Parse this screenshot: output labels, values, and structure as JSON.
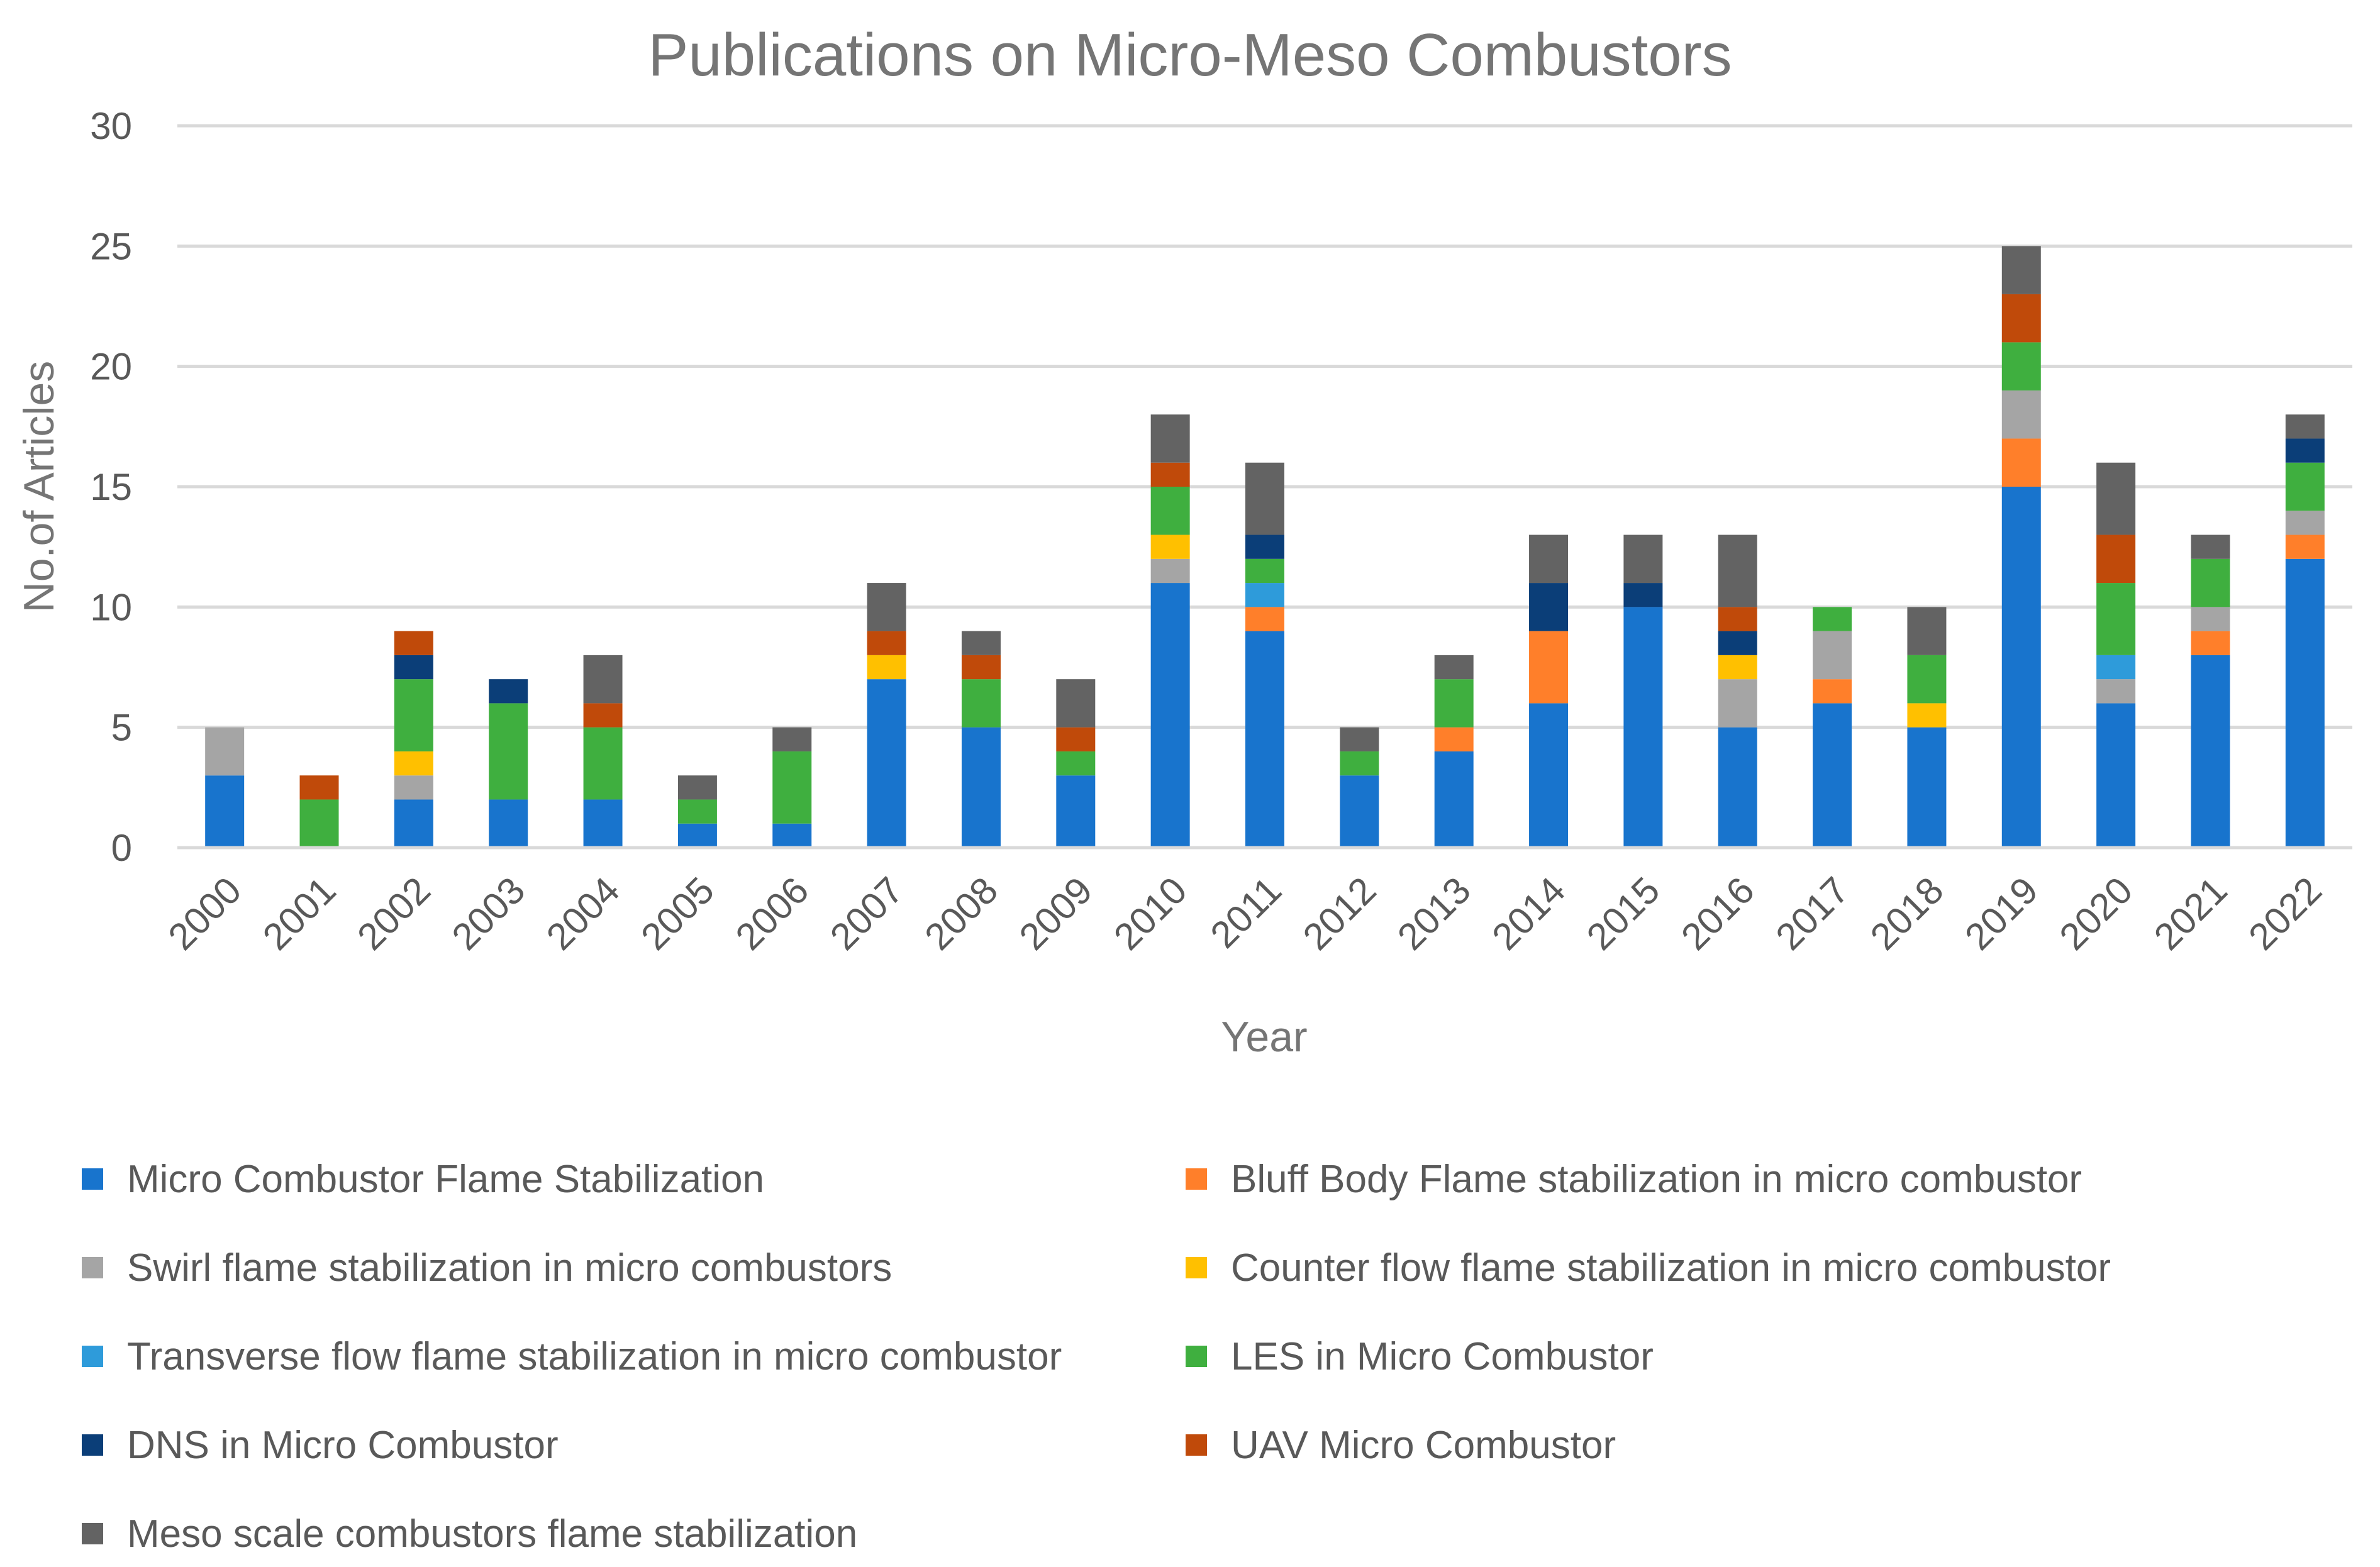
{
  "chart_data": {
    "type": "bar",
    "stacked": true,
    "title": "Publications on Micro-Meso Combustors",
    "xlabel": "Year",
    "ylabel": "No.of Articles",
    "ylim": [
      0,
      30
    ],
    "yticks": [
      "0",
      "5",
      "10",
      "15",
      "20",
      "25",
      "30"
    ],
    "grid": true,
    "legend_position": "bottom",
    "categories": [
      "2000",
      "2001",
      "2002",
      "2003",
      "2004",
      "2005",
      "2006",
      "2007",
      "2008",
      "2009",
      "2010",
      "2011",
      "2012",
      "2013",
      "2014",
      "2015",
      "2016",
      "2017",
      "2018",
      "2019",
      "2020",
      "2021",
      "2022"
    ],
    "series": [
      {
        "name": "Micro Combustor Flame Stabilization",
        "color": "#1874CD",
        "values": [
          3,
          0,
          2,
          2,
          2,
          1,
          1,
          7,
          5,
          3,
          11,
          9,
          3,
          4,
          6,
          10,
          5,
          6,
          5,
          15,
          6,
          8,
          12
        ]
      },
      {
        "name": "Bluff Body Flame stabilization in micro combustor",
        "color": "#FF7F2A",
        "values": [
          0,
          0,
          0,
          0,
          0,
          0,
          0,
          0,
          0,
          0,
          0,
          1,
          0,
          1,
          3,
          0,
          0,
          1,
          0,
          2,
          0,
          1,
          1
        ]
      },
      {
        "name": "Swirl flame stabilization in micro combustors",
        "color": "#A5A5A5",
        "values": [
          2,
          0,
          1,
          0,
          0,
          0,
          0,
          0,
          0,
          0,
          1,
          0,
          0,
          0,
          0,
          0,
          2,
          2,
          0,
          2,
          1,
          1,
          1
        ]
      },
      {
        "name": "Counter flow flame stabilization in micro combustor",
        "color": "#FFC000",
        "values": [
          0,
          0,
          1,
          0,
          0,
          0,
          0,
          1,
          0,
          0,
          1,
          0,
          0,
          0,
          0,
          0,
          1,
          0,
          1,
          0,
          0,
          0,
          0
        ]
      },
      {
        "name": "Transverse flow flame stabilization in micro combustor",
        "color": "#2E9BDA",
        "values": [
          0,
          0,
          0,
          0,
          0,
          0,
          0,
          0,
          0,
          0,
          0,
          1,
          0,
          0,
          0,
          0,
          0,
          0,
          0,
          0,
          1,
          0,
          0
        ]
      },
      {
        "name": "LES in Micro Combustor",
        "color": "#3FAF3F",
        "values": [
          0,
          2,
          3,
          4,
          3,
          1,
          3,
          0,
          2,
          1,
          2,
          1,
          1,
          2,
          0,
          0,
          0,
          1,
          2,
          2,
          3,
          2,
          2
        ]
      },
      {
        "name": "DNS in Micro Combustor",
        "color": "#0B3E78",
        "values": [
          0,
          0,
          1,
          1,
          0,
          0,
          0,
          0,
          0,
          0,
          0,
          1,
          0,
          0,
          2,
          1,
          1,
          0,
          0,
          0,
          0,
          0,
          1
        ]
      },
      {
        "name": "UAV Micro Combustor",
        "color": "#C04A0A",
        "values": [
          0,
          1,
          1,
          0,
          1,
          0,
          0,
          1,
          1,
          1,
          1,
          0,
          0,
          0,
          0,
          0,
          1,
          0,
          0,
          2,
          2,
          0,
          0
        ]
      },
      {
        "name": "Meso scale combustors flame stabilization",
        "color": "#636363",
        "values": [
          0,
          0,
          0,
          0,
          2,
          1,
          1,
          2,
          1,
          2,
          2,
          3,
          1,
          1,
          2,
          2,
          3,
          0,
          2,
          2,
          3,
          1,
          1
        ]
      }
    ]
  }
}
